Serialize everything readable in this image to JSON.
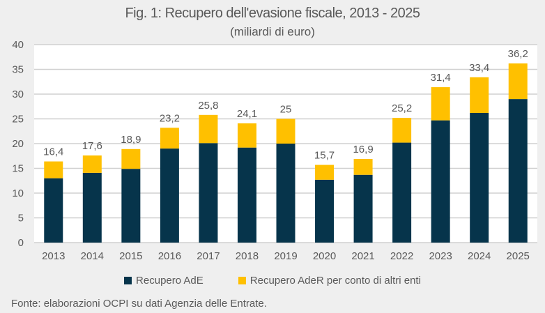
{
  "chart_data": {
    "type": "bar",
    "stacked": true,
    "title": "Fig. 1: Recupero dell'evasione fiscale, 2013 - 2025",
    "subtitle": "(miliardi di euro)",
    "xlabel": "",
    "ylabel": "",
    "ylim": [
      0,
      40
    ],
    "yticks": [
      0,
      5,
      10,
      15,
      20,
      25,
      30,
      35,
      40
    ],
    "grid": true,
    "legend_position": "bottom",
    "categories": [
      "2013",
      "2014",
      "2015",
      "2016",
      "2017",
      "2018",
      "2019",
      "2020",
      "2021",
      "2022",
      "2023",
      "2024",
      "2025"
    ],
    "series": [
      {
        "name": "Recupero AdE",
        "color": "#06344B",
        "values": [
          13.0,
          14.1,
          14.9,
          19.0,
          20.1,
          19.2,
          20.0,
          12.7,
          13.7,
          20.2,
          24.7,
          26.2,
          29.0
        ]
      },
      {
        "name": "Recupero AdeR per conto di altri enti",
        "color": "#FFC000",
        "values": [
          3.4,
          3.5,
          4.0,
          4.2,
          5.7,
          4.9,
          5.0,
          3.0,
          3.2,
          5.0,
          6.7,
          7.2,
          7.2
        ]
      }
    ],
    "totals": [
      16.4,
      17.6,
      18.9,
      23.2,
      25.8,
      24.1,
      25,
      15.7,
      16.9,
      25.2,
      31.4,
      33.4,
      36.2
    ],
    "total_labels": [
      "16,4",
      "17,6",
      "18,9",
      "23,2",
      "25,8",
      "24,1",
      "25",
      "15,7",
      "16,9",
      "25,2",
      "31,4",
      "33,4",
      "36,2"
    ]
  },
  "source_note": "Fonte: elaborazioni OCPI su dati Agenzia delle Entrate.",
  "colors": {
    "background": "#EFEFEF",
    "plot_background": "#FFFFFF",
    "gridline": "#D0D0D0",
    "text": "#595959"
  }
}
